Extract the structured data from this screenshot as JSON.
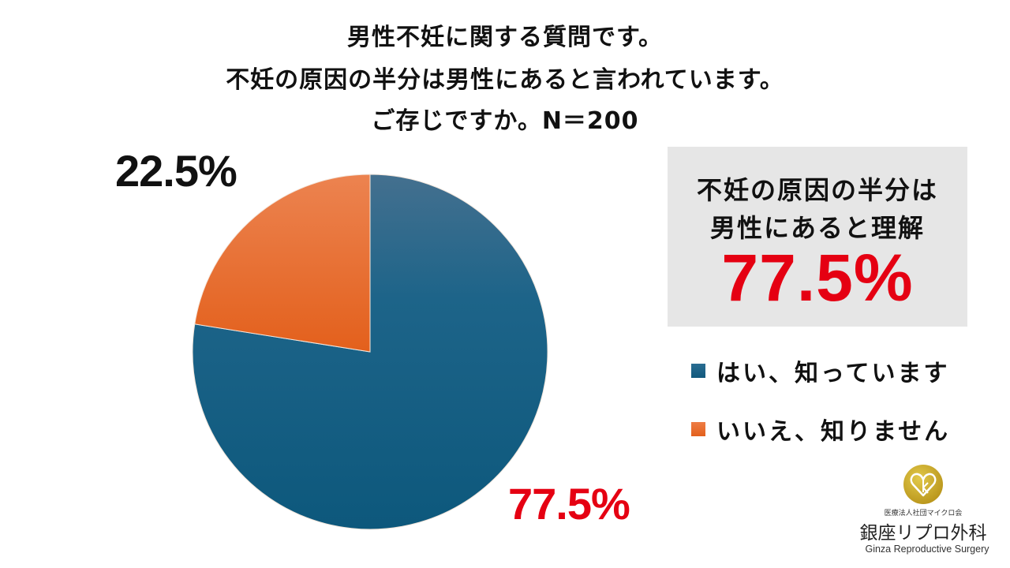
{
  "title": {
    "line1": "男性不妊に関する質問です。",
    "line2": "不妊の原因の半分は男性にあると言われています。",
    "line3": "ご存じですか。N＝200"
  },
  "pie_labels": {
    "no": "22.5%",
    "yes": "77.5%"
  },
  "callout": {
    "line1": "不妊の原因の半分は",
    "line2": "男性にあると理解",
    "value": "77.5%"
  },
  "legend": [
    {
      "label": "はい、知っています",
      "color": "#1a5f85"
    },
    {
      "label": "いいえ、知りません",
      "color": "#ea6a2a"
    }
  ],
  "logo": {
    "org": "医療法人社団マイクロ会",
    "name_jp": "銀座リプロ外科",
    "name_en": "Ginza Reproductive Surgery",
    "badge_color": "#c8a820"
  },
  "colors": {
    "yes": "#1a5f85",
    "no": "#ea6a2a",
    "accent_red": "#e50012",
    "callout_bg": "#e6e6e6"
  },
  "chart_data": {
    "type": "pie",
    "title": "男性不妊に関する質問です。不妊の原因の半分は男性にあると言われています。ご存じですか。N＝200",
    "categories": [
      "はい、知っています",
      "いいえ、知りません"
    ],
    "values": [
      77.5,
      22.5
    ],
    "unit": "%",
    "n": 200,
    "data_labels": [
      "77.5%",
      "22.5%"
    ],
    "colors": [
      "#1a5f85",
      "#ea6a2a"
    ],
    "start_angle": "12 o'clock, clockwise",
    "legend_position": "right",
    "annotation": "不妊の原因の半分は男性にあると理解 77.5%"
  }
}
